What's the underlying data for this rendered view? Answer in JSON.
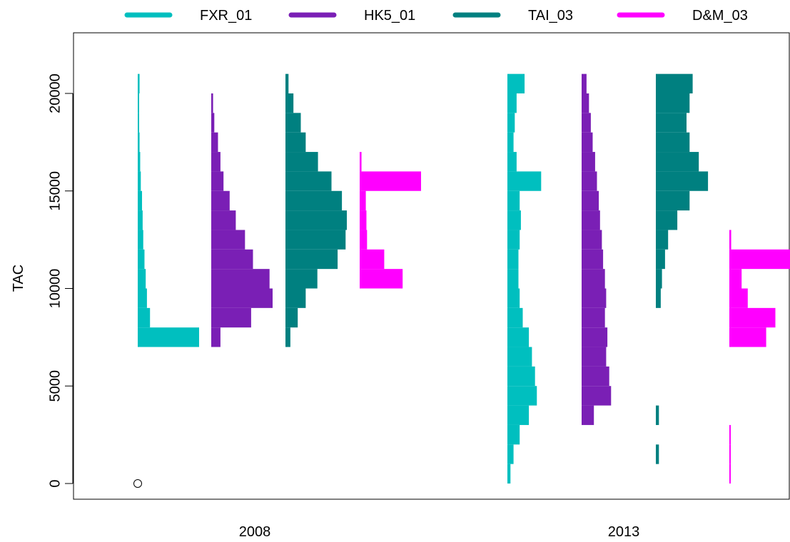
{
  "chart_data": {
    "type": "histogram-strip",
    "ylabel": "TAC",
    "xlabel": "",
    "ylim": [
      -1000,
      22000
    ],
    "yticks": [
      0,
      5000,
      10000,
      15000,
      20000
    ],
    "categories": [
      "2008",
      "2013"
    ],
    "legend_position": "top",
    "legend": [
      {
        "name": "FXR_01",
        "color": "#00BFBF"
      },
      {
        "name": "HK5_01",
        "color": "#7A1FB5"
      },
      {
        "name": "TAI_03",
        "color": "#008080"
      },
      {
        "name": "D&M_03",
        "color": "#FF00FF"
      }
    ],
    "points": [
      {
        "category": "2008",
        "y": 0,
        "shape": "open-circle"
      }
    ],
    "series": [
      {
        "name": "FXR_01",
        "category": "2008",
        "color": "#00BFBF",
        "bin_width": 1000,
        "bins": [
          [
            7000,
            1.0
          ],
          [
            8000,
            0.2
          ],
          [
            9000,
            0.15
          ],
          [
            10000,
            0.13
          ],
          [
            11000,
            0.11
          ],
          [
            12000,
            0.09
          ],
          [
            13000,
            0.08
          ],
          [
            14000,
            0.07
          ],
          [
            15000,
            0.05
          ],
          [
            16000,
            0.04
          ],
          [
            17000,
            0.03
          ],
          [
            18000,
            0.02
          ],
          [
            19000,
            0.02
          ],
          [
            20000,
            0.03
          ]
        ]
      },
      {
        "name": "HK5_01",
        "category": "2008",
        "color": "#7A1FB5",
        "bin_width": 1000,
        "bins": [
          [
            7000,
            0.15
          ],
          [
            8000,
            0.65
          ],
          [
            9000,
            1.0
          ],
          [
            10000,
            0.95
          ],
          [
            11000,
            0.68
          ],
          [
            12000,
            0.55
          ],
          [
            13000,
            0.4
          ],
          [
            14000,
            0.3
          ],
          [
            15000,
            0.2
          ],
          [
            16000,
            0.15
          ],
          [
            17000,
            0.11
          ],
          [
            18000,
            0.05
          ],
          [
            19000,
            0.03
          ]
        ]
      },
      {
        "name": "TAI_03",
        "category": "2008",
        "color": "#008080",
        "bin_width": 1000,
        "bins": [
          [
            7000,
            0.08
          ],
          [
            8000,
            0.2
          ],
          [
            9000,
            0.33
          ],
          [
            10000,
            0.52
          ],
          [
            11000,
            0.85
          ],
          [
            12000,
            0.98
          ],
          [
            13000,
            1.0
          ],
          [
            14000,
            0.92
          ],
          [
            15000,
            0.75
          ],
          [
            16000,
            0.53
          ],
          [
            17000,
            0.33
          ],
          [
            18000,
            0.25
          ],
          [
            19000,
            0.13
          ],
          [
            20000,
            0.05
          ]
        ]
      },
      {
        "name": "D&M_03",
        "category": "2008",
        "color": "#FF00FF",
        "bin_width": 1000,
        "bins": [
          [
            10000,
            0.7
          ],
          [
            11000,
            0.4
          ],
          [
            12000,
            0.12
          ],
          [
            13000,
            0.11
          ],
          [
            14000,
            0.1
          ],
          [
            15000,
            1.0
          ],
          [
            16000,
            0.03
          ]
        ]
      },
      {
        "name": "FXR_01",
        "category": "2013",
        "color": "#00BFBF",
        "bin_width": 1000,
        "bins": [
          [
            0,
            0.05
          ],
          [
            1000,
            0.1
          ],
          [
            2000,
            0.2
          ],
          [
            3000,
            0.35
          ],
          [
            4000,
            0.48
          ],
          [
            5000,
            0.45
          ],
          [
            6000,
            0.4
          ],
          [
            7000,
            0.35
          ],
          [
            8000,
            0.25
          ],
          [
            9000,
            0.2
          ],
          [
            10000,
            0.18
          ],
          [
            11000,
            0.18
          ],
          [
            12000,
            0.2
          ],
          [
            13000,
            0.22
          ],
          [
            14000,
            0.2
          ],
          [
            15000,
            0.55
          ],
          [
            16000,
            0.15
          ],
          [
            17000,
            0.1
          ],
          [
            18000,
            0.12
          ],
          [
            19000,
            0.15
          ],
          [
            20000,
            0.28
          ]
        ]
      },
      {
        "name": "HK5_01",
        "category": "2013",
        "color": "#7A1FB5",
        "bin_width": 1000,
        "bins": [
          [
            3000,
            0.2
          ],
          [
            4000,
            0.48
          ],
          [
            5000,
            0.45
          ],
          [
            6000,
            0.4
          ],
          [
            7000,
            0.42
          ],
          [
            8000,
            0.38
          ],
          [
            9000,
            0.4
          ],
          [
            10000,
            0.38
          ],
          [
            11000,
            0.35
          ],
          [
            12000,
            0.33
          ],
          [
            13000,
            0.3
          ],
          [
            14000,
            0.28
          ],
          [
            15000,
            0.25
          ],
          [
            16000,
            0.22
          ],
          [
            17000,
            0.18
          ],
          [
            18000,
            0.15
          ],
          [
            19000,
            0.12
          ],
          [
            20000,
            0.08
          ]
        ]
      },
      {
        "name": "TAI_03",
        "category": "2013",
        "color": "#008080",
        "bin_width": 1000,
        "bins": [
          [
            1000,
            0.05
          ],
          [
            3000,
            0.05
          ],
          [
            9000,
            0.08
          ],
          [
            10000,
            0.1
          ],
          [
            11000,
            0.15
          ],
          [
            12000,
            0.2
          ],
          [
            13000,
            0.35
          ],
          [
            14000,
            0.55
          ],
          [
            15000,
            0.85
          ],
          [
            16000,
            0.7
          ],
          [
            17000,
            0.55
          ],
          [
            18000,
            0.5
          ],
          [
            19000,
            0.55
          ],
          [
            20000,
            0.6
          ]
        ]
      },
      {
        "name": "D&M_03",
        "category": "2013",
        "color": "#FF00FF",
        "bin_width": 1000,
        "bins": [
          [
            0,
            0.02
          ],
          [
            1000,
            0.02
          ],
          [
            2000,
            0.02
          ],
          [
            7000,
            0.6
          ],
          [
            8000,
            0.75
          ],
          [
            9000,
            0.3
          ],
          [
            10000,
            0.2
          ],
          [
            11000,
            1.0
          ],
          [
            12000,
            0.03
          ]
        ]
      }
    ]
  }
}
